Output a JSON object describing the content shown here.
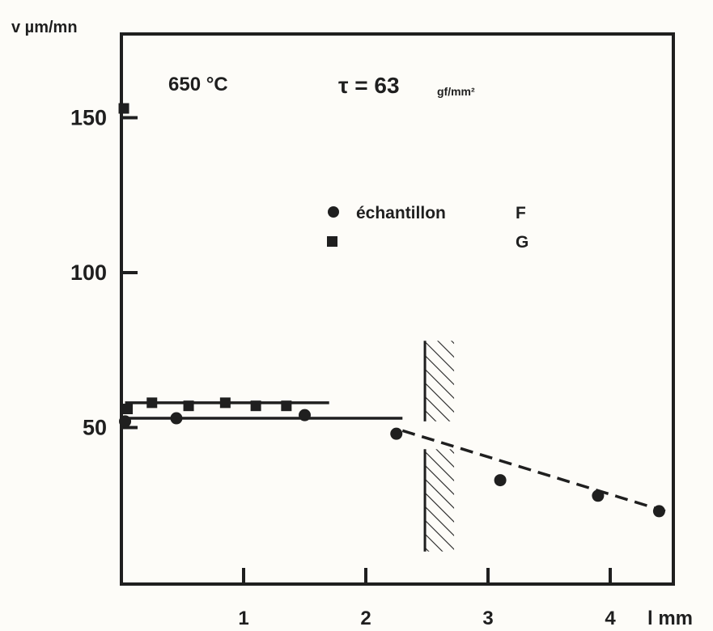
{
  "chart_data": {
    "type": "scatter",
    "title": "",
    "ylabel": "v µm/mn",
    "xlabel": "l mm",
    "annotations": {
      "temperature": "650 °C",
      "stress_symbol": "τ = 63",
      "stress_unit": "gf/mm²"
    },
    "legend": {
      "placement": "center",
      "prefix": "échantillon",
      "entries": [
        {
          "label": "F",
          "marker": "circle"
        },
        {
          "label": "G",
          "marker": "square"
        }
      ]
    },
    "xlim": [
      0,
      4.45
    ],
    "ylim": [
      0,
      180
    ],
    "xticks": [
      1,
      2,
      3,
      4
    ],
    "yticks": [
      50,
      100,
      150
    ],
    "grid": false,
    "series": [
      {
        "name": "F",
        "marker": "circle",
        "points": [
          [
            0.03,
            52
          ],
          [
            0.45,
            53
          ],
          [
            1.5,
            54
          ],
          [
            2.25,
            48
          ],
          [
            3.1,
            33
          ],
          [
            3.9,
            28
          ],
          [
            4.4,
            23
          ]
        ],
        "fit_segments": [
          {
            "style": "solid",
            "from": [
              0.03,
              53
            ],
            "to": [
              2.3,
              53
            ]
          },
          {
            "style": "dashed",
            "from": [
              2.3,
              49
            ],
            "to": [
              4.45,
              23
            ]
          }
        ]
      },
      {
        "name": "G",
        "marker": "square",
        "points": [
          [
            0.02,
            153
          ],
          [
            0.05,
            56
          ],
          [
            0.25,
            58
          ],
          [
            0.55,
            57
          ],
          [
            0.85,
            58
          ],
          [
            1.1,
            57
          ],
          [
            1.35,
            57
          ]
        ],
        "fit_segments": [
          {
            "style": "solid",
            "from": [
              0.03,
              58
            ],
            "to": [
              1.7,
              58
            ]
          }
        ]
      }
    ],
    "hatched_barrier": {
      "x": 2.55,
      "y_range": [
        10,
        78
      ],
      "gap": [
        43,
        52
      ]
    },
    "colors": {
      "ink": "#1f1f1f",
      "paper": "#fdfcf8"
    }
  }
}
